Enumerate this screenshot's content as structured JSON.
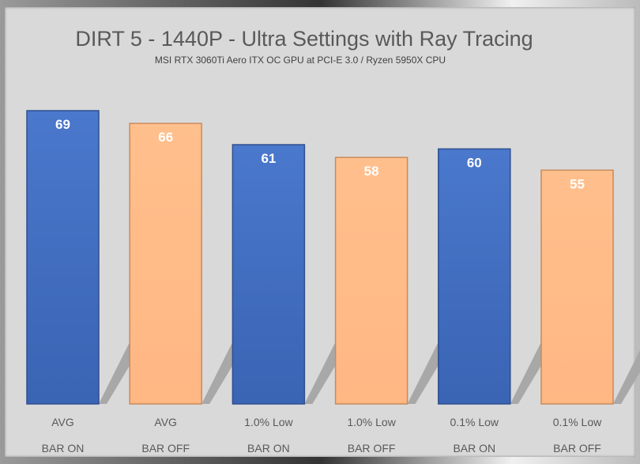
{
  "chart_data": {
    "type": "bar",
    "title": "DIRT 5 - 1440P - Ultra Settings with Ray Tracing",
    "subtitle": "MSI RTX 3060Ti Aero ITX OC GPU at PCI-E 3.0 / Ryzen 5950X CPU",
    "categories": [
      {
        "metric": "AVG",
        "config": "BAR ON"
      },
      {
        "metric": "AVG",
        "config": "BAR OFF"
      },
      {
        "metric": "1.0% Low",
        "config": "BAR ON"
      },
      {
        "metric": "1.0% Low",
        "config": "BAR OFF"
      },
      {
        "metric": "0.1% Low",
        "config": "BAR ON"
      },
      {
        "metric": "0.1% Low",
        "config": "BAR OFF"
      }
    ],
    "values": [
      69,
      66,
      61,
      58,
      60,
      55
    ],
    "colors": {
      "BAR ON": "#4472c4",
      "BAR OFF": "#ffbb88"
    },
    "ylim": [
      0,
      69
    ],
    "grid": false,
    "xlabel": "",
    "ylabel": ""
  }
}
